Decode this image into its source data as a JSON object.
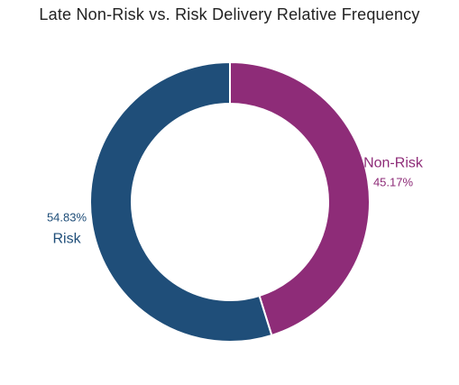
{
  "chart_data": {
    "type": "pie",
    "style": "donut",
    "title": "Late Non-Risk vs. Risk Delivery Relative Frequency",
    "slices": [
      {
        "label": "Non-Risk",
        "value": 45.17,
        "value_label": "45.17%",
        "color": "#8e2c78"
      },
      {
        "label": "Risk",
        "value": 54.83,
        "value_label": "54.83%",
        "color": "#1f4e79"
      }
    ],
    "start_angle": "12 o'clock",
    "direction": "clockwise",
    "separator_color": "#ffffff"
  }
}
